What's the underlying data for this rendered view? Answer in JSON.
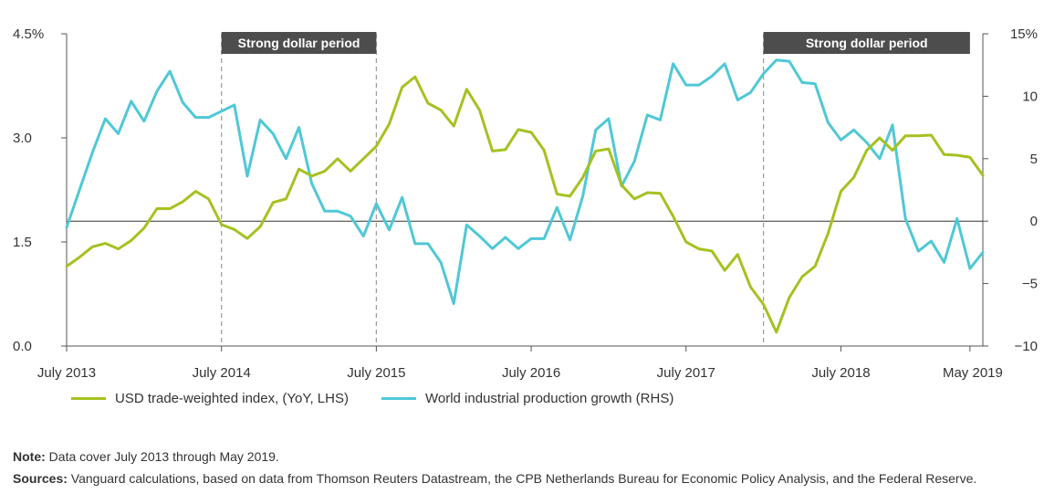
{
  "chart_data": {
    "type": "line",
    "x_start": "July 2013",
    "x_end": "May 2019",
    "x_tick_labels": [
      "July 2013",
      "July 2014",
      "July 2015",
      "July 2016",
      "July 2017",
      "July 2018",
      "May 2019"
    ],
    "left_axis": {
      "ticks": [
        "4.5%",
        "3.0",
        "1.5",
        "0.0"
      ],
      "values": [
        4.5,
        3.0,
        1.5,
        0.0
      ],
      "ylim": [
        0,
        4.5
      ]
    },
    "right_axis": {
      "ticks": [
        "15%",
        "10",
        "5",
        "0",
        "−5",
        "−10"
      ],
      "values": [
        15,
        10,
        5,
        0,
        -5,
        -10
      ],
      "ylim": [
        -10,
        15
      ]
    },
    "shaded_periods": [
      {
        "label": "Strong dollar period",
        "start": "July 2014",
        "end": "July 2015"
      },
      {
        "label": "Strong dollar period",
        "start": "Jan 2018",
        "end": "May 2019"
      }
    ],
    "series": [
      {
        "name": "USD trade-weighted index, (YoY, LHS)",
        "axis": "left",
        "color": "#a4c220",
        "values": [
          1.15,
          1.28,
          1.43,
          1.48,
          1.4,
          1.52,
          1.7,
          1.98,
          1.98,
          2.08,
          2.23,
          2.12,
          1.75,
          1.68,
          1.55,
          1.72,
          2.07,
          2.12,
          2.55,
          2.45,
          2.52,
          2.7,
          2.52,
          2.7,
          2.88,
          3.2,
          3.73,
          3.88,
          3.5,
          3.4,
          3.17,
          3.7,
          3.4,
          2.81,
          2.83,
          3.12,
          3.08,
          2.82,
          2.19,
          2.16,
          2.43,
          2.81,
          2.84,
          2.32,
          2.12,
          2.21,
          2.2,
          1.87,
          1.5,
          1.4,
          1.37,
          1.09,
          1.32,
          0.85,
          0.6,
          0.2,
          0.7,
          1.0,
          1.15,
          1.62,
          2.23,
          2.43,
          2.82,
          3.0,
          2.82,
          3.03,
          3.03,
          3.04,
          2.76,
          2.75,
          2.72,
          2.46
        ]
      },
      {
        "name": "World industrial production growth (RHS)",
        "axis": "right",
        "color": "#4fc8d6",
        "values": [
          -0.5,
          2.5,
          5.5,
          8.2,
          7.0,
          9.6,
          8.0,
          10.4,
          12.0,
          9.5,
          8.3,
          8.3,
          8.8,
          9.3,
          3.6,
          8.1,
          7.0,
          5.0,
          7.5,
          3.0,
          0.8,
          0.8,
          0.4,
          -1.2,
          1.4,
          -0.7,
          1.9,
          -1.8,
          -1.8,
          -3.3,
          -6.6,
          -0.3,
          -1.2,
          -2.2,
          -1.3,
          -2.2,
          -1.4,
          -1.4,
          1.1,
          -1.5,
          2.0,
          7.3,
          8.2,
          2.8,
          4.8,
          8.5,
          8.1,
          12.6,
          10.9,
          10.9,
          11.6,
          12.6,
          9.7,
          10.3,
          11.8,
          12.9,
          12.8,
          11.1,
          11.0,
          7.9,
          6.5,
          7.3,
          6.3,
          5.0,
          7.7,
          0.2,
          -2.4,
          -1.6,
          -3.3,
          0.2,
          -3.8,
          -2.5
        ]
      }
    ],
    "legend_placement": "bottom-left",
    "grid": false
  },
  "notes": {
    "note_label": "Note:",
    "note_text": " Data cover July 2013 through May 2019.",
    "sources_label": "Sources:",
    "sources_text": " Vanguard calculations, based on data from Thomson Reuters Datastream, the CPB Netherlands Bureau for Economic Policy Analysis, and the Federal Reserve."
  }
}
